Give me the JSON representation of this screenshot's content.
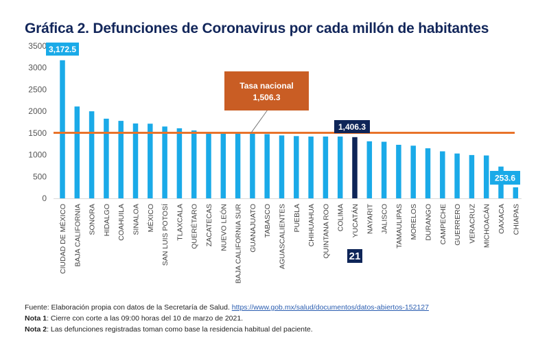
{
  "title": "Gráfica 2. Defunciones de Coronavirus por cada millón de habitantes",
  "colors": {
    "bar": "#1aaae8",
    "highlight": "#0e2558",
    "national": "#e8732a",
    "callout": "#c95d24"
  },
  "chart_data": {
    "type": "bar",
    "title": "Gráfica 2. Defunciones de Coronavirus por cada millón de habitantes",
    "xlabel": "",
    "ylabel": "",
    "ylim": [
      0,
      3500
    ],
    "yticks": [
      0,
      500,
      1000,
      1500,
      2000,
      2500,
      3000,
      3500
    ],
    "grid": false,
    "categories": [
      "CIUDAD DE MÉXICO",
      "BAJA CALIFORNIA",
      "SONORA",
      "HIDALGO",
      "COAHUILA",
      "SINALOA",
      "MÉXICO",
      "SAN LUIS POTOSÍ",
      "TLAXCALA",
      "QUERÉTARO",
      "ZACATECAS",
      "NUEVO LEÓN",
      "BAJA CALIFORNIA SUR",
      "GUANAJUATO",
      "TABASCO",
      "AGUASCALIENTES",
      "PUEBLA",
      "CHIHUAHUA",
      "QUINTANA ROO",
      "COLIMA",
      "YUCATÁN",
      "NAYARIT",
      "JALISCO",
      "TAMAULIPAS",
      "MORELOS",
      "DURANGO",
      "CAMPECHE",
      "GUERRERO",
      "VERACRUZ",
      "MICHOACÁN",
      "OAXACA",
      "CHIAPAS"
    ],
    "values": [
      3172.5,
      2110,
      2000,
      1830,
      1780,
      1720,
      1715,
      1650,
      1610,
      1560,
      1520,
      1505,
      1500,
      1500,
      1475,
      1445,
      1430,
      1420,
      1420,
      1420,
      1406.3,
      1310,
      1300,
      1230,
      1210,
      1150,
      1080,
      1030,
      995,
      985,
      730,
      253.6
    ],
    "highlight_index": 20,
    "highlight_rank": "21",
    "reference_line": {
      "label": "Tasa nacional",
      "value": 1506.3,
      "value_label": "1,506.3"
    },
    "data_labels": [
      {
        "index": 0,
        "text": "3,172.5"
      },
      {
        "index": 20,
        "text": "1,406.3"
      },
      {
        "index": 31,
        "text": "253.6"
      }
    ]
  },
  "footer": {
    "source_prefix": "Fuente: Elaboración propia con datos de la Secretaría de Salud. ",
    "source_link": "https://www.gob.mx/salud/documentos/datos-abiertos-152127",
    "note1_label": "Nota 1",
    "note1_text": ": Cierre con corte a las 09:00 horas del 10 de marzo de 2021.",
    "note2_label": "Nota 2",
    "note2_text": ": Las defunciones registradas toman como base la residencia habitual del paciente."
  }
}
